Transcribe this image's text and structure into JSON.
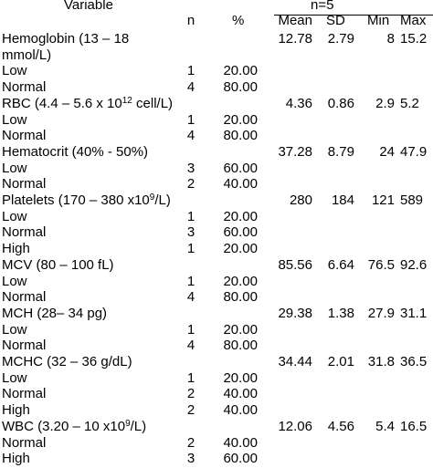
{
  "header": {
    "variable": "Variable",
    "n_group": "n=5",
    "n": "n",
    "pct": "%",
    "mean": "Mean",
    "sd": "SD",
    "min": "Min",
    "max": "Max"
  },
  "rows": [
    {
      "pre": "Hemoglobin (13 – 18",
      "sup": "",
      "post": "",
      "n": "",
      "pct": "",
      "mean": "12.78",
      "sd": "2.79",
      "min": "8",
      "max": "15.2"
    },
    {
      "pre": "mmol/L)",
      "sup": "",
      "post": "",
      "n": "",
      "pct": "",
      "mean": "",
      "sd": "",
      "min": "",
      "max": ""
    },
    {
      "pre": "Low",
      "sup": "",
      "post": "",
      "n": "1",
      "pct": "20.00",
      "mean": "",
      "sd": "",
      "min": "",
      "max": ""
    },
    {
      "pre": "Normal",
      "sup": "",
      "post": "",
      "n": "4",
      "pct": "80.00",
      "mean": "",
      "sd": "",
      "min": "",
      "max": ""
    },
    {
      "pre": "RBC (4.4 – 5.6 x 10",
      "sup": "12",
      "post": " cell/L)",
      "n": "",
      "pct": "",
      "mean": "4.36",
      "sd": "0.86",
      "min": "2.9",
      "max": "5.2"
    },
    {
      "pre": "Low",
      "sup": "",
      "post": "",
      "n": "1",
      "pct": "20.00",
      "mean": "",
      "sd": "",
      "min": "",
      "max": ""
    },
    {
      "pre": "Normal",
      "sup": "",
      "post": "",
      "n": "4",
      "pct": "80.00",
      "mean": "",
      "sd": "",
      "min": "",
      "max": ""
    },
    {
      "pre": "Hematocrit (40% - 50%)",
      "sup": "",
      "post": "",
      "n": "",
      "pct": "",
      "mean": "37.28",
      "sd": "8.79",
      "min": "24",
      "max": "47.9"
    },
    {
      "pre": "Low",
      "sup": "",
      "post": "",
      "n": "3",
      "pct": "60.00",
      "mean": "",
      "sd": "",
      "min": "",
      "max": ""
    },
    {
      "pre": "Normal",
      "sup": "",
      "post": "",
      "n": "2",
      "pct": "40.00",
      "mean": "",
      "sd": "",
      "min": "",
      "max": ""
    },
    {
      "pre": "Platelets (170 – 380 x10",
      "sup": "9",
      "post": "/L)",
      "n": "",
      "pct": "",
      "mean": "280",
      "sd": "184",
      "min": "121",
      "max": "589"
    },
    {
      "pre": "Low",
      "sup": "",
      "post": "",
      "n": "1",
      "pct": "20.00",
      "mean": "",
      "sd": "",
      "min": "",
      "max": ""
    },
    {
      "pre": "Normal",
      "sup": "",
      "post": "",
      "n": "3",
      "pct": "60.00",
      "mean": "",
      "sd": "",
      "min": "",
      "max": ""
    },
    {
      "pre": "High",
      "sup": "",
      "post": "",
      "n": "1",
      "pct": "20.00",
      "mean": "",
      "sd": "",
      "min": "",
      "max": ""
    },
    {
      "pre": "MCV (80 – 100 fL)",
      "sup": "",
      "post": "",
      "n": "",
      "pct": "",
      "mean": "85.56",
      "sd": "6.64",
      "min": "76.5",
      "max": "92.6"
    },
    {
      "pre": "Low",
      "sup": "",
      "post": "",
      "n": "1",
      "pct": "20.00",
      "mean": "",
      "sd": "",
      "min": "",
      "max": ""
    },
    {
      "pre": "Normal",
      "sup": "",
      "post": "",
      "n": "4",
      "pct": "80.00",
      "mean": "",
      "sd": "",
      "min": "",
      "max": ""
    },
    {
      "pre": "MCH (28– 34 pg)",
      "sup": "",
      "post": "",
      "n": "",
      "pct": "",
      "mean": "29.38",
      "sd": "1.38",
      "min": "27.9",
      "max": "31.1"
    },
    {
      "pre": "Low",
      "sup": "",
      "post": "",
      "n": "1",
      "pct": "20.00",
      "mean": "",
      "sd": "",
      "min": "",
      "max": ""
    },
    {
      "pre": "Normal",
      "sup": "",
      "post": "",
      "n": "4",
      "pct": "80.00",
      "mean": "",
      "sd": "",
      "min": "",
      "max": ""
    },
    {
      "pre": "MCHC (32 – 36 g/dL)",
      "sup": "",
      "post": "",
      "n": "",
      "pct": "",
      "mean": "34.44",
      "sd": "2.01",
      "min": "31.8",
      "max": "36.5"
    },
    {
      "pre": "Low",
      "sup": "",
      "post": "",
      "n": "1",
      "pct": "20.00",
      "mean": "",
      "sd": "",
      "min": "",
      "max": ""
    },
    {
      "pre": "Normal",
      "sup": "",
      "post": "",
      "n": "2",
      "pct": "40.00",
      "mean": "",
      "sd": "",
      "min": "",
      "max": ""
    },
    {
      "pre": "High",
      "sup": "",
      "post": "",
      "n": "2",
      "pct": "40.00",
      "mean": "",
      "sd": "",
      "min": "",
      "max": ""
    },
    {
      "pre": "WBC (3.20 – 10 x10",
      "sup": "9",
      "post": "/L)",
      "n": "",
      "pct": "",
      "mean": "12.06",
      "sd": "4.56",
      "min": "5.4",
      "max": "16.5"
    },
    {
      "pre": "Normal",
      "sup": "",
      "post": "",
      "n": "2",
      "pct": "40.00",
      "mean": "",
      "sd": "",
      "min": "",
      "max": ""
    },
    {
      "pre": "High",
      "sup": "",
      "post": "",
      "n": "3",
      "pct": "60.00",
      "mean": "",
      "sd": "",
      "min": "",
      "max": ""
    }
  ]
}
